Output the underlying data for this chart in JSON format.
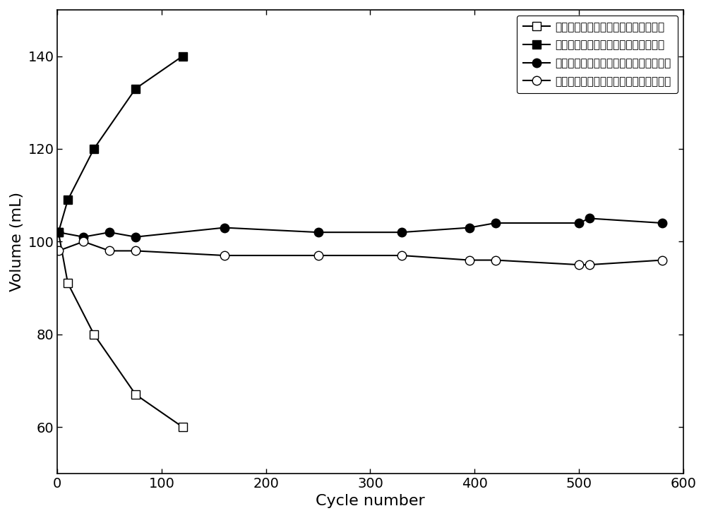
{
  "series": [
    {
      "label": "传统碱性锌铁液流电池负极电解液体积",
      "x": [
        1,
        10,
        35,
        75,
        120
      ],
      "y": [
        102,
        91,
        80,
        67,
        60
      ],
      "marker": "s",
      "markerfacecolor": "white",
      "markeredgecolor": "black",
      "color": "black",
      "markersize": 8,
      "linewidth": 1.5
    },
    {
      "label": "传统碱性锌铁液流电池正极电解液体积",
      "x": [
        1,
        10,
        35,
        75,
        120
      ],
      "y": [
        102,
        109,
        120,
        133,
        140
      ],
      "marker": "s",
      "markerfacecolor": "black",
      "markeredgecolor": "black",
      "color": "black",
      "markersize": 8,
      "linewidth": 1.5
    },
    {
      "label": "对称型碱性锌铁液流电池正极电解液体积",
      "x": [
        1,
        25,
        50,
        75,
        160,
        250,
        330,
        395,
        420,
        500,
        510,
        580
      ],
      "y": [
        102,
        101,
        102,
        101,
        103,
        102,
        102,
        103,
        104,
        104,
        105,
        104
      ],
      "marker": "o",
      "markerfacecolor": "black",
      "markeredgecolor": "black",
      "color": "black",
      "markersize": 9,
      "linewidth": 1.5
    },
    {
      "label": "对称型碱性锌铁液流电池负极电解液体积",
      "x": [
        1,
        25,
        50,
        75,
        160,
        250,
        330,
        395,
        420,
        500,
        510,
        580
      ],
      "y": [
        98,
        100,
        98,
        98,
        97,
        97,
        97,
        96,
        96,
        95,
        95,
        96
      ],
      "marker": "o",
      "markerfacecolor": "white",
      "markeredgecolor": "black",
      "color": "black",
      "markersize": 9,
      "linewidth": 1.5
    }
  ],
  "xlabel": "Cycle number",
  "ylabel": "Volume (mL)",
  "xlim": [
    0,
    600
  ],
  "ylim": [
    50,
    150
  ],
  "xticks": [
    0,
    100,
    200,
    300,
    400,
    500,
    600
  ],
  "yticks": [
    60,
    80,
    100,
    120,
    140
  ],
  "figure_width": 10.0,
  "figure_height": 7.34,
  "font_size_axis_label": 16,
  "font_size_tick": 14,
  "font_size_legend": 11,
  "background_color": "#ffffff",
  "spine_color": "#000000"
}
